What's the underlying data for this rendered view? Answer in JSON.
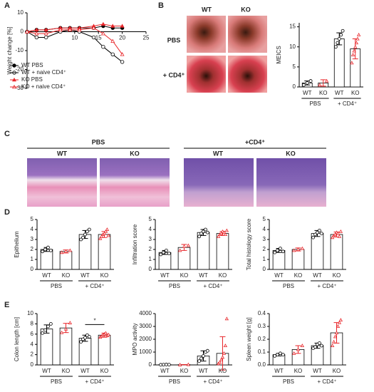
{
  "panels": [
    "A",
    "B",
    "C",
    "D",
    "E"
  ],
  "images": {
    "B": {
      "columns": [
        "WT",
        "KO"
      ],
      "rows": [
        "PBS",
        "+ CD4⁺"
      ]
    },
    "C": {
      "groups": [
        "PBS",
        "+CD4⁺"
      ],
      "columns": [
        "WT",
        "KO",
        "WT",
        "KO"
      ]
    }
  },
  "chart_data": [
    {
      "type": "line",
      "ylabel": "Weight change [%]",
      "x": [
        0,
        2,
        4,
        7,
        9,
        11,
        14,
        16,
        18,
        20
      ],
      "xlim": [
        0,
        25
      ],
      "xticks": [
        10,
        15,
        20,
        25
      ],
      "ylim": [
        -30,
        10
      ],
      "yticks": [
        10,
        0,
        -10,
        -20,
        -30
      ],
      "legend": "lower left",
      "series": [
        {
          "name": "WT PBS",
          "color": "#000000",
          "marker": "circle",
          "filled": true,
          "values": [
            0,
            1,
            1,
            2,
            2,
            2,
            2,
            3,
            2,
            2
          ]
        },
        {
          "name": "WT + naive CD4⁺",
          "color": "#000000",
          "marker": "circle",
          "filled": false,
          "values": [
            0,
            -3,
            -3,
            0,
            1,
            0,
            -3,
            -8,
            -12,
            -16
          ]
        },
        {
          "name": "KO PBS",
          "color": "#e8262a",
          "marker": "triangle",
          "filled": true,
          "values": [
            0,
            1,
            1,
            2,
            2,
            2,
            3,
            4,
            3,
            3
          ]
        },
        {
          "name": "KO + naive CD4⁺",
          "color": "#e8262a",
          "marker": "triangle",
          "filled": false,
          "values": [
            0,
            -1,
            -1,
            1,
            1,
            1,
            2,
            -1,
            -5,
            -12
          ]
        }
      ]
    },
    {
      "type": "bar",
      "ylabel": "MEICS",
      "categories": [
        "WT",
        "KO",
        "WT",
        "KO"
      ],
      "groups": [
        "PBS",
        "+ CD4⁺"
      ],
      "colors": [
        "#000000",
        "#e8262a",
        "#000000",
        "#e8262a"
      ],
      "markers": [
        "circle",
        "triangle",
        "circle",
        "triangle"
      ],
      "values": [
        1,
        1,
        12,
        9.5
      ],
      "errors": [
        0.5,
        0.8,
        1.5,
        2.5
      ],
      "points": [
        [
          0.5,
          1,
          1.5
        ],
        [
          0.5,
          1.5
        ],
        [
          10,
          11,
          12,
          13,
          14
        ],
        [
          6,
          8,
          9,
          10,
          11,
          12,
          13
        ]
      ],
      "ylim": [
        0,
        16
      ],
      "yticks": [
        0,
        5,
        10,
        15
      ]
    },
    {
      "type": "bar",
      "ylabel": "Epithelium",
      "categories": [
        "WT",
        "KO",
        "WT",
        "KO"
      ],
      "groups": [
        "PBS",
        "+ CD4⁺"
      ],
      "colors": [
        "#000000",
        "#e8262a",
        "#000000",
        "#e8262a"
      ],
      "markers": [
        "circle",
        "triangle",
        "circle",
        "triangle"
      ],
      "values": [
        2,
        1.8,
        3.5,
        3.5
      ],
      "errors": [
        0.2,
        0.15,
        0.4,
        0.3
      ],
      "points": [
        [
          1.8,
          2,
          2.2,
          1.9
        ],
        [
          1.7,
          1.8,
          1.9
        ],
        [
          3,
          3.2,
          3.5,
          3.8,
          4
        ],
        [
          3.1,
          3.3,
          3.5,
          3.6,
          3.8,
          4,
          3.4
        ]
      ],
      "ylim": [
        0,
        5
      ],
      "yticks": [
        0,
        1,
        2,
        3,
        4,
        5
      ]
    },
    {
      "type": "bar",
      "ylabel": "Infiltration score",
      "categories": [
        "WT",
        "KO",
        "WT",
        "KO"
      ],
      "groups": [
        "PBS",
        "+ CD4⁺"
      ],
      "colors": [
        "#000000",
        "#e8262a",
        "#000000",
        "#e8262a"
      ],
      "markers": [
        "circle",
        "triangle",
        "circle",
        "triangle"
      ],
      "values": [
        1.7,
        2.2,
        3.7,
        3.6
      ],
      "errors": [
        0.2,
        0.3,
        0.3,
        0.2
      ],
      "points": [
        [
          1.5,
          1.7,
          1.9,
          1.6
        ],
        [
          1.9,
          2.3,
          2.4
        ],
        [
          3.3,
          3.6,
          3.8,
          4,
          3.7
        ],
        [
          3.3,
          3.5,
          3.6,
          3.8,
          3.7,
          3.5,
          3.9
        ]
      ],
      "ylim": [
        0,
        5
      ],
      "yticks": [
        0,
        1,
        2,
        3,
        4,
        5
      ]
    },
    {
      "type": "bar",
      "ylabel": "Total histology score",
      "categories": [
        "WT",
        "KO",
        "WT",
        "KO"
      ],
      "groups": [
        "PBS",
        "+ CD4⁺"
      ],
      "colors": [
        "#000000",
        "#e8262a",
        "#000000",
        "#e8262a"
      ],
      "markers": [
        "circle",
        "triangle",
        "circle",
        "triangle"
      ],
      "values": [
        1.9,
        2,
        3.6,
        3.5
      ],
      "errors": [
        0.2,
        0.15,
        0.3,
        0.25
      ],
      "points": [
        [
          1.7,
          1.9,
          2.1,
          1.8
        ],
        [
          1.9,
          2,
          2.1
        ],
        [
          3.2,
          3.5,
          3.7,
          3.9,
          3.6
        ],
        [
          3.2,
          3.4,
          3.5,
          3.7,
          3.6,
          3.3,
          3.8
        ]
      ],
      "ylim": [
        0,
        5
      ],
      "yticks": [
        0,
        1,
        2,
        3,
        4,
        5
      ]
    },
    {
      "type": "bar",
      "ylabel": "Colon length [cm]",
      "categories": [
        "WT",
        "KO",
        "WT",
        "KO"
      ],
      "groups": [
        "PBS",
        "+ CD4⁺"
      ],
      "annotation": "*",
      "colors": [
        "#000000",
        "#e8262a",
        "#000000",
        "#e8262a"
      ],
      "markers": [
        "circle",
        "triangle",
        "circle",
        "triangle"
      ],
      "values": [
        7,
        7.2,
        5.2,
        5.8
      ],
      "errors": [
        0.8,
        0.9,
        0.6,
        0.4
      ],
      "points": [
        [
          6.2,
          6.8,
          7.5,
          8
        ],
        [
          6.3,
          7,
          8.2
        ],
        [
          4.5,
          5,
          5.3,
          5.8,
          5.5
        ],
        [
          5.4,
          5.6,
          5.8,
          6,
          6.2,
          5.7,
          5.9
        ]
      ],
      "ylim": [
        0,
        10
      ],
      "yticks": [
        0,
        2,
        4,
        6,
        8,
        10
      ]
    },
    {
      "type": "bar",
      "ylabel": "MPO activity",
      "categories": [
        "WT",
        "KO",
        "WT",
        "KO"
      ],
      "groups": [
        "PBS",
        "+ CD4⁺"
      ],
      "colors": [
        "#000000",
        "#e8262a",
        "#000000",
        "#e8262a"
      ],
      "markers": [
        "circle",
        "triangle",
        "circle",
        "triangle"
      ],
      "values": [
        20,
        20,
        700,
        900
      ],
      "errors": [
        10,
        10,
        400,
        1300
      ],
      "points": [
        [
          10,
          20,
          30,
          20
        ],
        [
          10,
          30
        ],
        [
          300,
          500,
          700,
          1000,
          1100
        ],
        [
          100,
          200,
          400,
          600,
          900,
          1500,
          3600
        ]
      ],
      "ylim": [
        0,
        4000
      ],
      "yticks": [
        0,
        1000,
        2000,
        3000,
        4000
      ]
    },
    {
      "type": "bar",
      "ylabel": "Spleen weight [g]",
      "categories": [
        "WT",
        "KO",
        "WT",
        "KO"
      ],
      "groups": [
        "PBS",
        "+ CD4⁺"
      ],
      "colors": [
        "#000000",
        "#e8262a",
        "#000000",
        "#e8262a"
      ],
      "markers": [
        "circle",
        "triangle",
        "circle",
        "triangle"
      ],
      "values": [
        0.08,
        0.12,
        0.15,
        0.25
      ],
      "errors": [
        0.01,
        0.03,
        0.02,
        0.08
      ],
      "points": [
        [
          0.07,
          0.08,
          0.09,
          0.08
        ],
        [
          0.09,
          0.12,
          0.15
        ],
        [
          0.13,
          0.14,
          0.16,
          0.17,
          0.15
        ],
        [
          0.15,
          0.18,
          0.22,
          0.25,
          0.3,
          0.33,
          0.35
        ]
      ],
      "ylim": [
        0,
        0.4
      ],
      "yticks": [
        {
          "value": 0,
          "label": "0.0"
        },
        0.1,
        0.2,
        0.3,
        0.4
      ]
    }
  ]
}
